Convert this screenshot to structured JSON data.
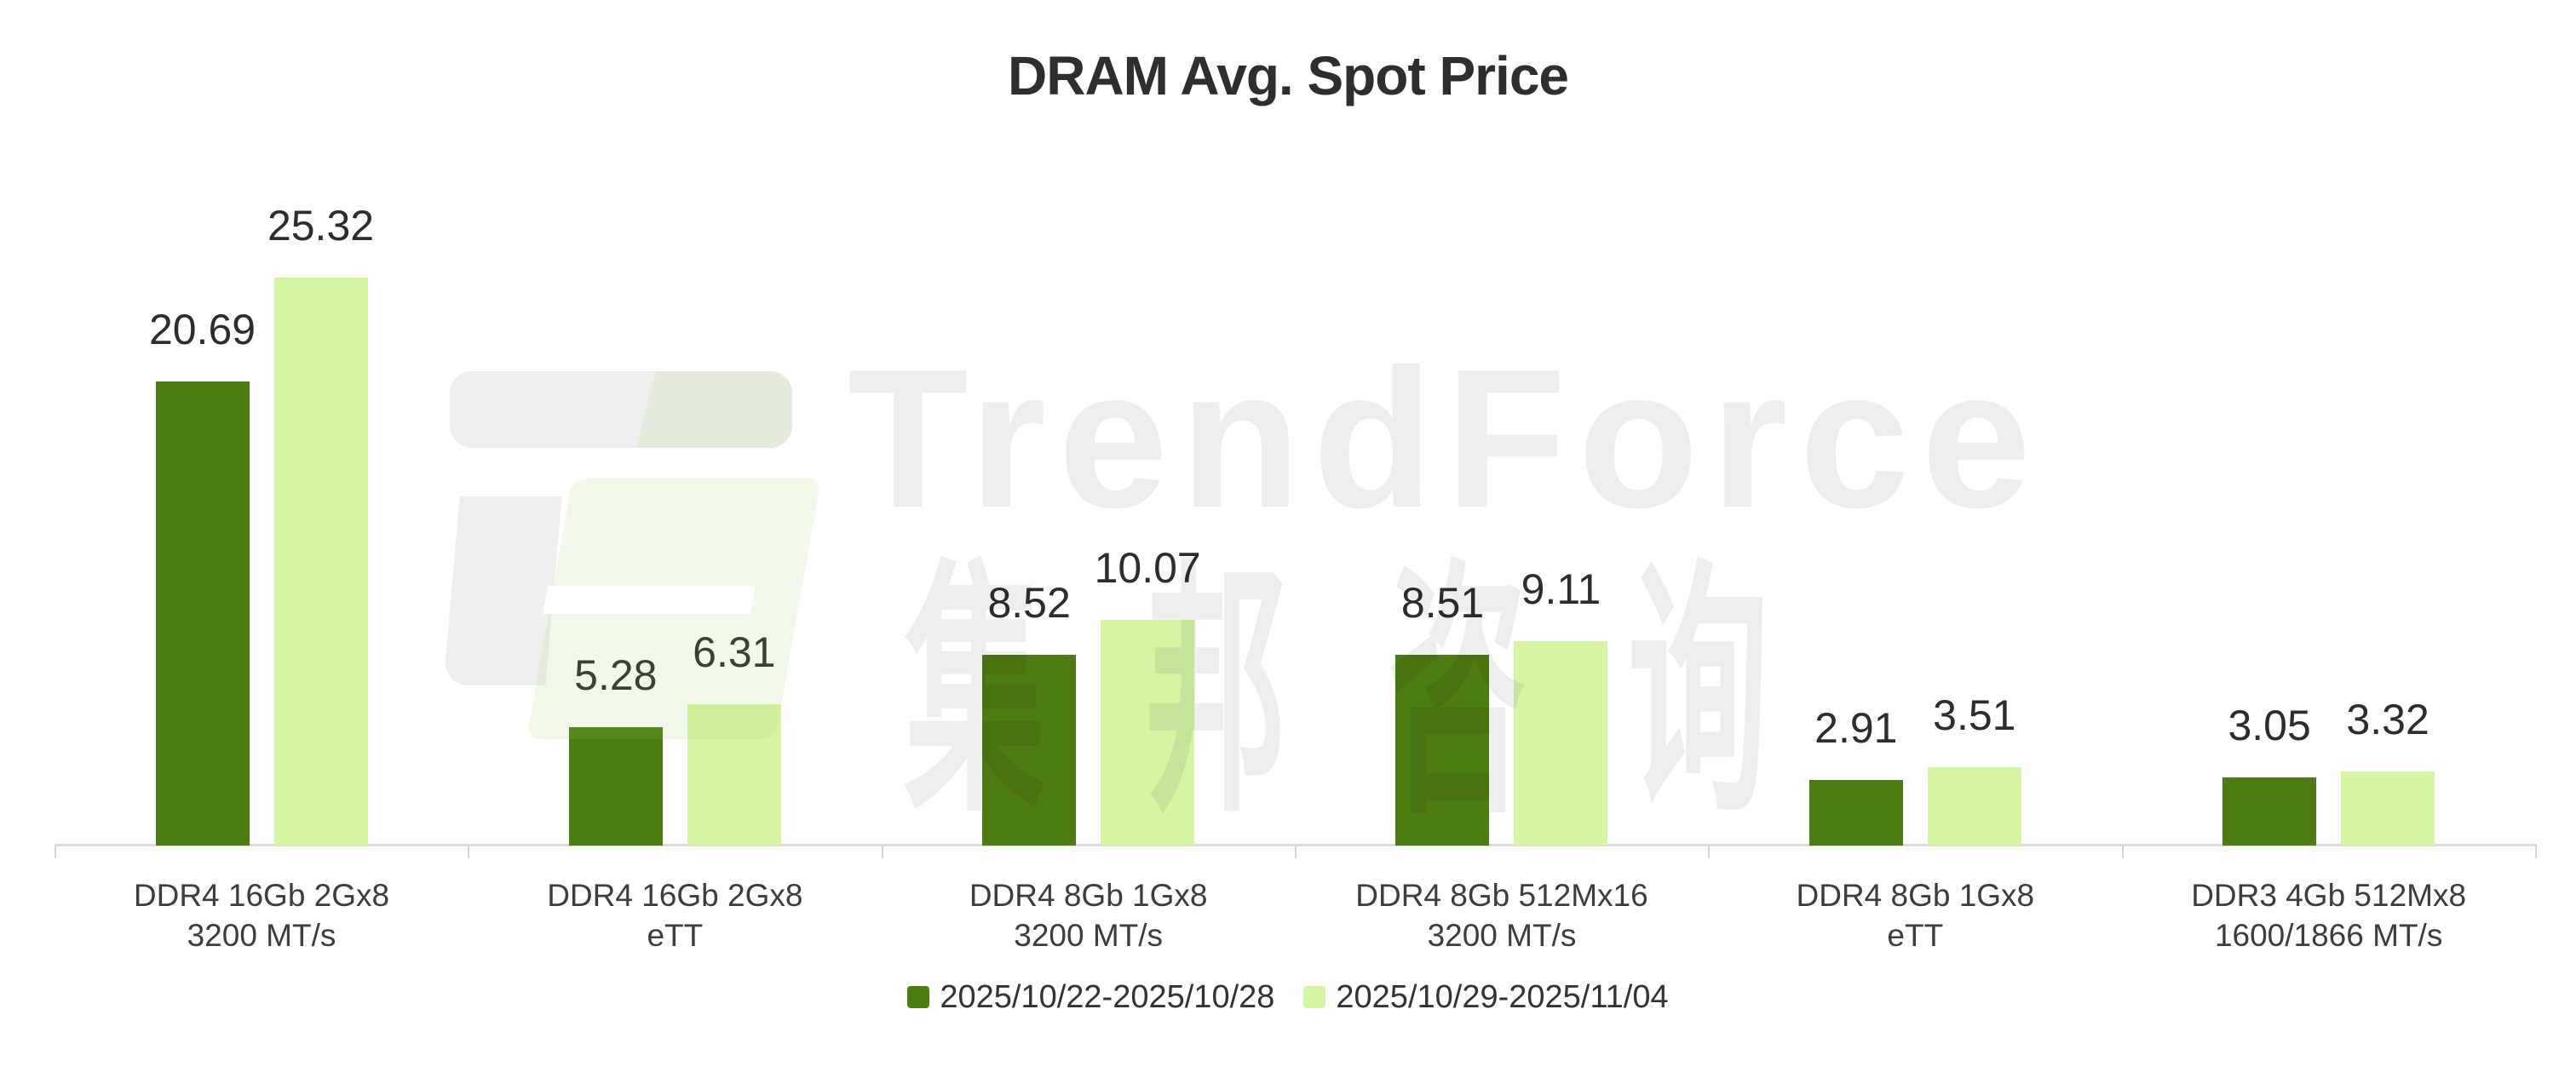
{
  "title": "DRAM Avg. Spot Price",
  "watermark": {
    "logo_icon": "trendforce-logo",
    "brand": "TrendForce",
    "brand_cn": "集邦咨询"
  },
  "legend": [
    {
      "label": "2025/10/22-2025/10/28",
      "color": "#4d7d12"
    },
    {
      "label": "2025/10/29-2025/11/04",
      "color": "#d5f5a4"
    }
  ],
  "colors": {
    "series1": "#4d7d12",
    "series2": "#d5f5a4",
    "axis": "#dbdbdb",
    "value_label": "#2d2d2d",
    "category_label": "#3d3d3d",
    "title": "#2e2e2e"
  },
  "chart_data": {
    "type": "bar",
    "title": "DRAM Avg. Spot Price",
    "categories": [
      [
        "DDR4 16Gb 2Gx8",
        "3200 MT/s"
      ],
      [
        "DDR4 16Gb 2Gx8",
        "eTT"
      ],
      [
        "DDR4 8Gb 1Gx8",
        "3200 MT/s"
      ],
      [
        "DDR4 8Gb 512Mx16",
        "3200 MT/s"
      ],
      [
        "DDR4 8Gb 1Gx8",
        "eTT"
      ],
      [
        "DDR3 4Gb 512Mx8",
        "1600/1866 MT/s"
      ]
    ],
    "series": [
      {
        "name": "2025/10/22-2025/10/28",
        "color": "#4d7d12",
        "values": [
          20.69,
          5.28,
          8.52,
          8.51,
          2.91,
          3.05
        ]
      },
      {
        "name": "2025/10/29-2025/11/04",
        "color": "#d5f5a4",
        "values": [
          25.32,
          6.31,
          10.07,
          9.11,
          3.51,
          3.32
        ]
      }
    ],
    "value_labels": true,
    "xlabel": "",
    "ylabel": "",
    "ylim": [
      0,
      27
    ],
    "grid": false,
    "legend_position": "bottom"
  }
}
